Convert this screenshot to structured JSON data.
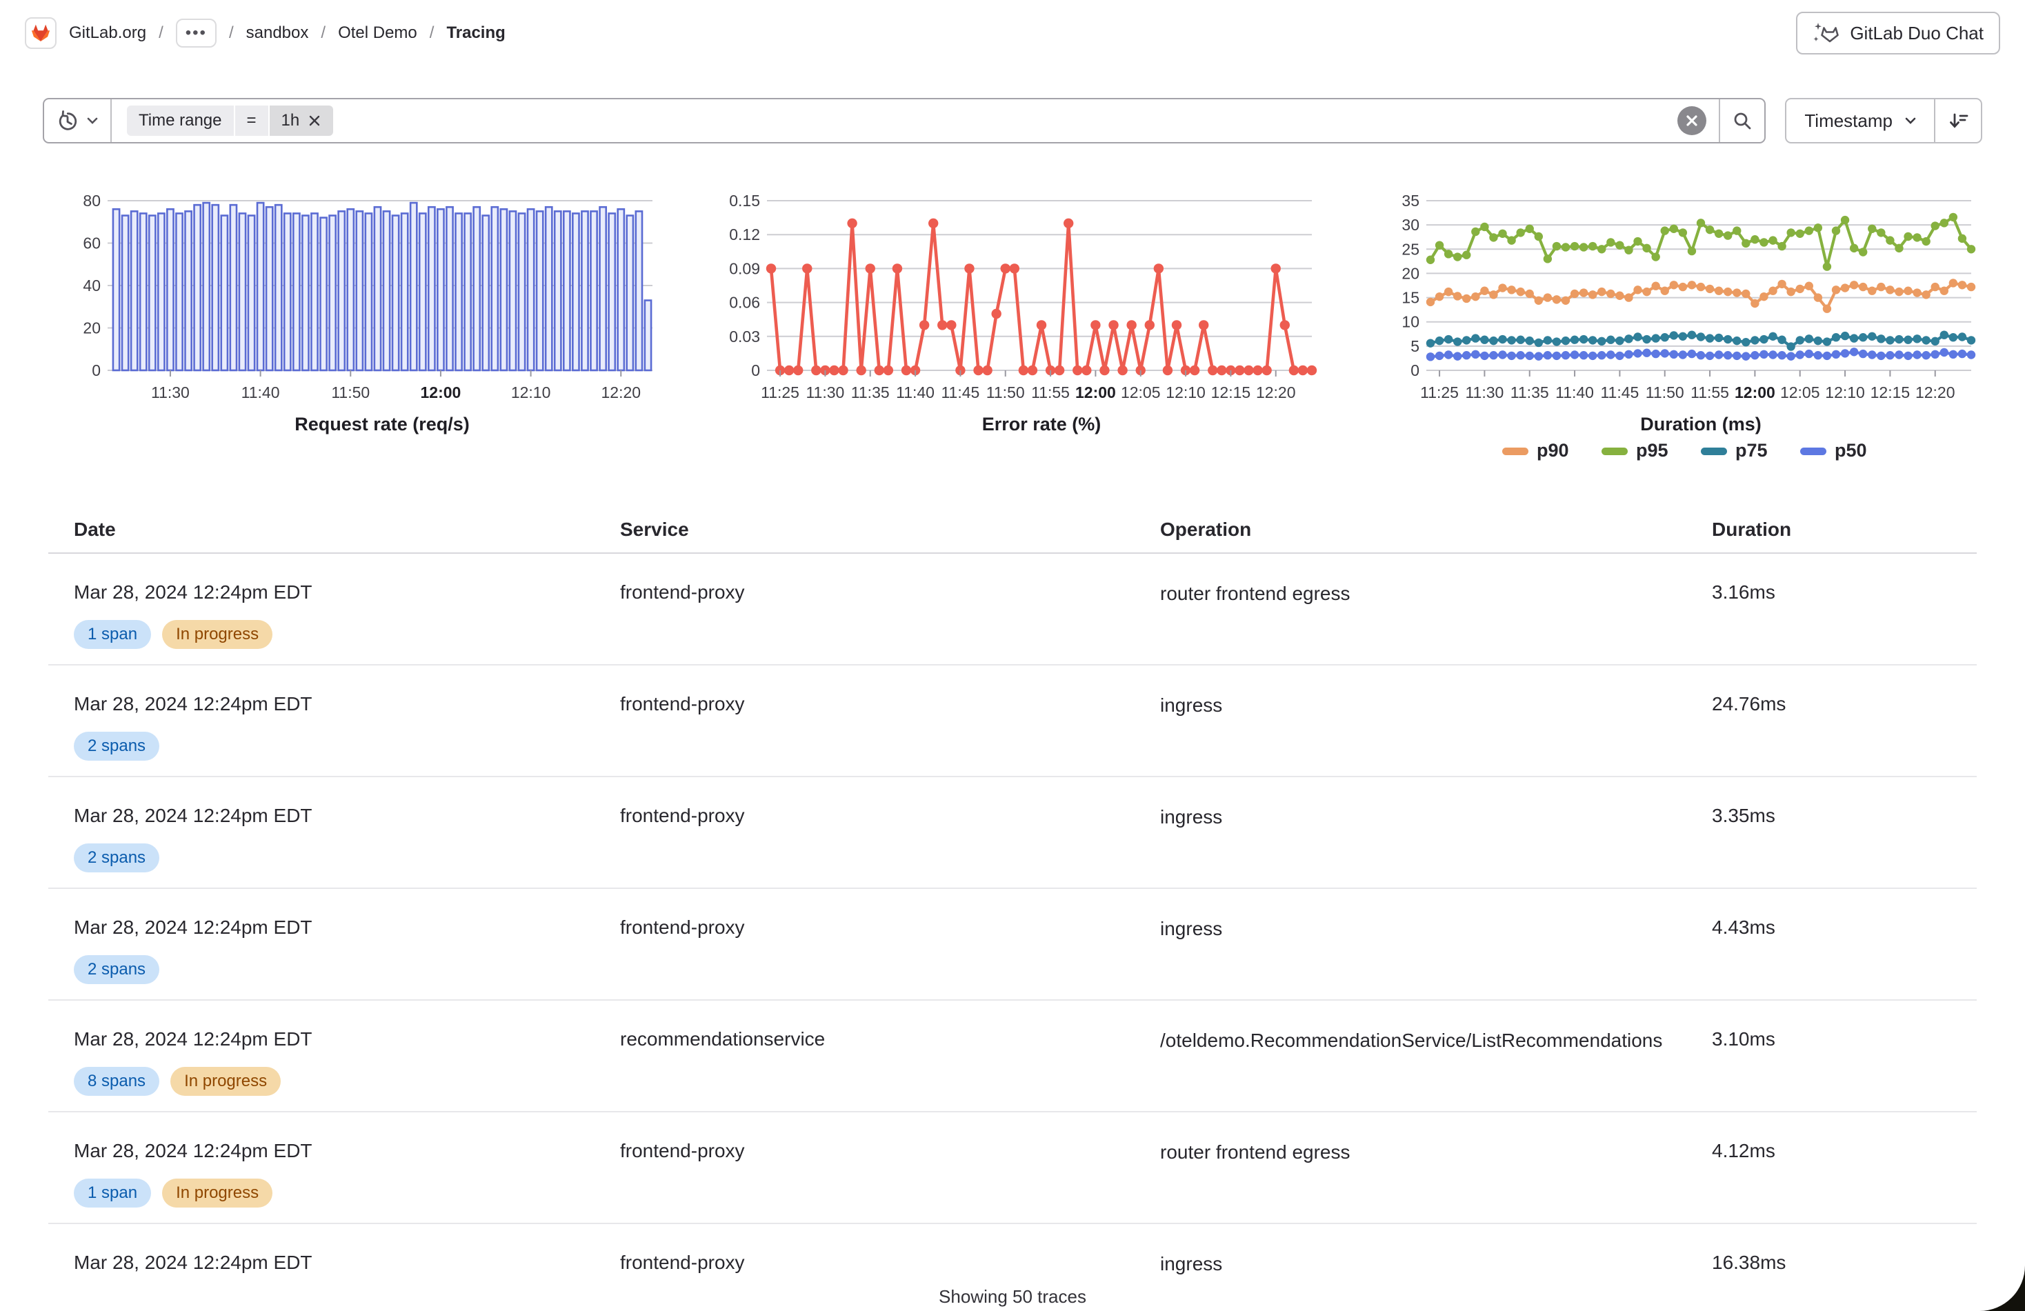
{
  "header": {
    "breadcrumb": {
      "separator": "/",
      "ellipsis": "•••",
      "items": [
        "GitLab.org",
        "sandbox",
        "Otel Demo",
        "Tracing"
      ]
    },
    "duo_chat_label": "GitLab Duo Chat"
  },
  "filter_bar": {
    "token": {
      "field": "Time range",
      "operator": "=",
      "value": "1h"
    },
    "sort_label": "Timestamp"
  },
  "chart_data": [
    {
      "type": "bar",
      "title": "Request rate (req/s)",
      "ylim": [
        0,
        80
      ],
      "yticks": [
        0,
        20,
        40,
        60,
        80
      ],
      "color": "#5a6bd3",
      "fill": "#e9ecfb",
      "xticks": [
        {
          "label": "11:30",
          "i": 6
        },
        {
          "label": "11:40",
          "i": 16
        },
        {
          "label": "11:50",
          "i": 26
        },
        {
          "label": "12:00",
          "i": 36,
          "bold": true
        },
        {
          "label": "12:10",
          "i": 46
        },
        {
          "label": "12:20",
          "i": 56
        }
      ],
      "values": [
        76,
        73,
        75,
        74,
        73,
        74,
        76,
        74,
        75,
        78,
        79,
        78,
        73,
        78,
        74,
        73,
        79,
        77,
        78,
        74,
        74,
        73,
        74,
        72,
        73,
        75,
        76,
        75,
        74,
        77,
        75,
        73,
        74,
        79,
        74,
        77,
        76,
        77,
        74,
        74,
        77,
        73,
        77,
        76,
        75,
        74,
        76,
        75,
        77,
        75,
        75,
        74,
        75,
        75,
        77,
        74,
        76,
        73,
        75,
        33
      ]
    },
    {
      "type": "line",
      "title": "Error rate (%)",
      "ylim": [
        0,
        0.15
      ],
      "yticks": [
        0,
        0.03,
        0.06,
        0.09,
        0.12,
        0.15
      ],
      "color": "#ed5c50",
      "xticks": [
        {
          "label": "11:25",
          "i": 1
        },
        {
          "label": "11:30",
          "i": 6
        },
        {
          "label": "11:35",
          "i": 11
        },
        {
          "label": "11:40",
          "i": 16
        },
        {
          "label": "11:45",
          "i": 21
        },
        {
          "label": "11:50",
          "i": 26
        },
        {
          "label": "11:55",
          "i": 31
        },
        {
          "label": "12:00",
          "i": 36,
          "bold": true
        },
        {
          "label": "12:05",
          "i": 41
        },
        {
          "label": "12:10",
          "i": 46
        },
        {
          "label": "12:15",
          "i": 51
        },
        {
          "label": "12:20",
          "i": 56
        }
      ],
      "values": [
        0.09,
        0,
        0,
        0,
        0.09,
        0,
        0,
        0,
        0,
        0.13,
        0,
        0.09,
        0,
        0,
        0.09,
        0,
        0,
        0.04,
        0.13,
        0.04,
        0.04,
        0,
        0.09,
        0,
        0,
        0.05,
        0.09,
        0.09,
        0,
        0,
        0.04,
        0,
        0,
        0.13,
        0,
        0,
        0.04,
        0,
        0.04,
        0,
        0.04,
        0,
        0.04,
        0.09,
        0,
        0.04,
        0,
        0,
        0.04,
        0,
        0,
        0,
        0,
        0,
        0,
        0,
        0.09,
        0.04,
        0,
        0,
        0
      ]
    },
    {
      "type": "multiline",
      "title": "Duration (ms)",
      "ylim": [
        0,
        35
      ],
      "yticks": [
        0,
        5,
        10,
        15,
        20,
        25,
        30,
        35
      ],
      "xticks": [
        {
          "label": "11:25",
          "i": 1
        },
        {
          "label": "11:30",
          "i": 6
        },
        {
          "label": "11:35",
          "i": 11
        },
        {
          "label": "11:40",
          "i": 16
        },
        {
          "label": "11:45",
          "i": 21
        },
        {
          "label": "11:50",
          "i": 26
        },
        {
          "label": "11:55",
          "i": 31
        },
        {
          "label": "12:00",
          "i": 36,
          "bold": true
        },
        {
          "label": "12:05",
          "i": 41
        },
        {
          "label": "12:10",
          "i": 46
        },
        {
          "label": "12:15",
          "i": 51
        },
        {
          "label": "12:20",
          "i": 56
        }
      ],
      "series": [
        {
          "name": "p90",
          "color": "#eb9b62",
          "values": [
            14.1,
            15.2,
            16.2,
            15.3,
            14.8,
            15.2,
            16.4,
            15.6,
            17.0,
            16.6,
            16.2,
            15.8,
            14.4,
            15.0,
            14.6,
            14.4,
            15.8,
            16.0,
            15.6,
            16.2,
            15.8,
            15.4,
            15.0,
            16.6,
            16.2,
            17.4,
            16.4,
            17.6,
            17.2,
            17.6,
            17.2,
            16.8,
            16.4,
            16.2,
            16.0,
            15.8,
            13.8,
            15.2,
            16.4,
            17.8,
            16.2,
            16.8,
            17.4,
            15.0,
            12.7,
            16.6,
            17.0,
            17.6,
            17.2,
            16.4,
            17.2,
            16.6,
            16.2,
            16.4,
            16.0,
            15.6,
            17.2,
            16.4,
            18.0,
            17.6,
            17.2
          ]
        },
        {
          "name": "p95",
          "color": "#86b13f",
          "values": [
            22.8,
            25.8,
            24.0,
            23.4,
            23.8,
            28.6,
            29.6,
            27.4,
            28.2,
            26.8,
            28.4,
            29.2,
            27.6,
            23.0,
            25.6,
            25.4,
            25.6,
            25.4,
            25.6,
            25.0,
            26.4,
            25.8,
            24.8,
            26.6,
            25.2,
            23.4,
            28.8,
            29.2,
            28.4,
            24.6,
            30.4,
            29.0,
            28.2,
            27.8,
            28.8,
            26.2,
            27.0,
            26.4,
            26.8,
            25.6,
            28.4,
            28.2,
            28.8,
            29.4,
            21.4,
            28.8,
            31.0,
            25.2,
            24.4,
            29.2,
            28.4,
            26.8,
            25.2,
            27.6,
            27.4,
            26.6,
            29.8,
            30.4,
            31.6,
            27.2,
            25.0
          ]
        },
        {
          "name": "p75",
          "color": "#2f7f99",
          "values": [
            5.6,
            6.1,
            6.4,
            5.9,
            6.2,
            6.6,
            6.3,
            6.1,
            6.4,
            6.2,
            6.3,
            6.1,
            5.7,
            6.2,
            5.9,
            6.1,
            6.3,
            6.4,
            6.2,
            6.0,
            6.3,
            6.1,
            6.5,
            6.9,
            6.4,
            6.6,
            6.8,
            7.2,
            7.0,
            7.3,
            6.9,
            6.6,
            6.7,
            6.4,
            6.1,
            5.8,
            6.2,
            6.4,
            7.0,
            6.3,
            4.9,
            6.2,
            6.5,
            6.1,
            5.9,
            6.8,
            7.1,
            6.6,
            6.8,
            7.0,
            6.5,
            6.2,
            6.4,
            6.3,
            6.5,
            6.2,
            6.0,
            7.3,
            6.8,
            6.9,
            6.2
          ]
        },
        {
          "name": "p50",
          "color": "#5d78e2",
          "values": [
            2.8,
            3.0,
            3.2,
            2.9,
            3.1,
            3.3,
            3.0,
            3.1,
            3.2,
            3.0,
            3.1,
            3.0,
            2.9,
            3.1,
            3.0,
            3.1,
            3.2,
            3.1,
            3.0,
            3.1,
            3.2,
            3.0,
            3.3,
            3.5,
            3.6,
            3.4,
            3.5,
            3.3,
            3.2,
            3.4,
            3.1,
            3.0,
            3.2,
            3.1,
            3.0,
            2.9,
            3.1,
            3.3,
            3.2,
            3.1,
            2.9,
            3.2,
            3.4,
            3.1,
            3.0,
            3.3,
            3.5,
            3.8,
            3.4,
            3.2,
            3.0,
            3.1,
            3.2,
            3.0,
            3.2,
            3.1,
            3.3,
            3.7,
            3.3,
            3.4,
            3.2
          ]
        }
      ]
    }
  ],
  "table": {
    "columns": [
      "Date",
      "Service",
      "Operation",
      "Duration"
    ],
    "rows": [
      {
        "date": "Mar 28, 2024 12:24pm EDT",
        "badges": [
          {
            "label": "1 span",
            "type": "info"
          },
          {
            "label": "In progress",
            "type": "warning"
          }
        ],
        "service": "frontend-proxy",
        "operation": "router frontend egress",
        "duration": "3.16ms"
      },
      {
        "date": "Mar 28, 2024 12:24pm EDT",
        "badges": [
          {
            "label": "2 spans",
            "type": "info"
          }
        ],
        "service": "frontend-proxy",
        "operation": "ingress",
        "duration": "24.76ms"
      },
      {
        "date": "Mar 28, 2024 12:24pm EDT",
        "badges": [
          {
            "label": "2 spans",
            "type": "info"
          }
        ],
        "service": "frontend-proxy",
        "operation": "ingress",
        "duration": "3.35ms"
      },
      {
        "date": "Mar 28, 2024 12:24pm EDT",
        "badges": [
          {
            "label": "2 spans",
            "type": "info"
          }
        ],
        "service": "frontend-proxy",
        "operation": "ingress",
        "duration": "4.43ms"
      },
      {
        "date": "Mar 28, 2024 12:24pm EDT",
        "badges": [
          {
            "label": "8 spans",
            "type": "info"
          },
          {
            "label": "In progress",
            "type": "warning"
          }
        ],
        "service": "recommendationservice",
        "operation": "/oteldemo.RecommendationService/ListRecommendations",
        "duration": "3.10ms"
      },
      {
        "date": "Mar 28, 2024 12:24pm EDT",
        "badges": [
          {
            "label": "1 span",
            "type": "info"
          },
          {
            "label": "In progress",
            "type": "warning"
          }
        ],
        "service": "frontend-proxy",
        "operation": "router frontend egress",
        "duration": "4.12ms"
      },
      {
        "date": "Mar 28, 2024 12:24pm EDT",
        "badges": [],
        "service": "frontend-proxy",
        "operation": "ingress",
        "duration": "16.38ms"
      }
    ]
  },
  "footer": {
    "summary": "Showing 50 traces"
  }
}
